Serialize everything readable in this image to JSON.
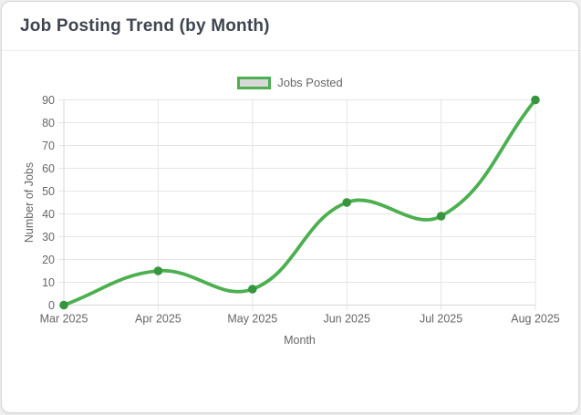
{
  "card": {
    "title": "Job Posting Trend (by Month)"
  },
  "chart_data": {
    "type": "line",
    "categories": [
      "Mar 2025",
      "Apr 2025",
      "May 2025",
      "Jun 2025",
      "Jul 2025",
      "Aug 2025"
    ],
    "series": [
      {
        "name": "Jobs Posted",
        "values": [
          0,
          15,
          7,
          45,
          39,
          90
        ]
      }
    ],
    "xlabel": "Month",
    "ylabel": "Number of Jobs",
    "ylim": [
      0,
      90
    ],
    "ytick_step": 10,
    "grid": true,
    "legend_position": "top-center",
    "line_tension": 0.4,
    "colors": {
      "line": "#4caf50",
      "point": "#36953d",
      "legend_box_fill": "#d8d8d8",
      "grid": "#e5e5e5",
      "axis_border": "#d7d7d7",
      "axis_text": "#666666",
      "title_text": "#3f4550"
    }
  }
}
